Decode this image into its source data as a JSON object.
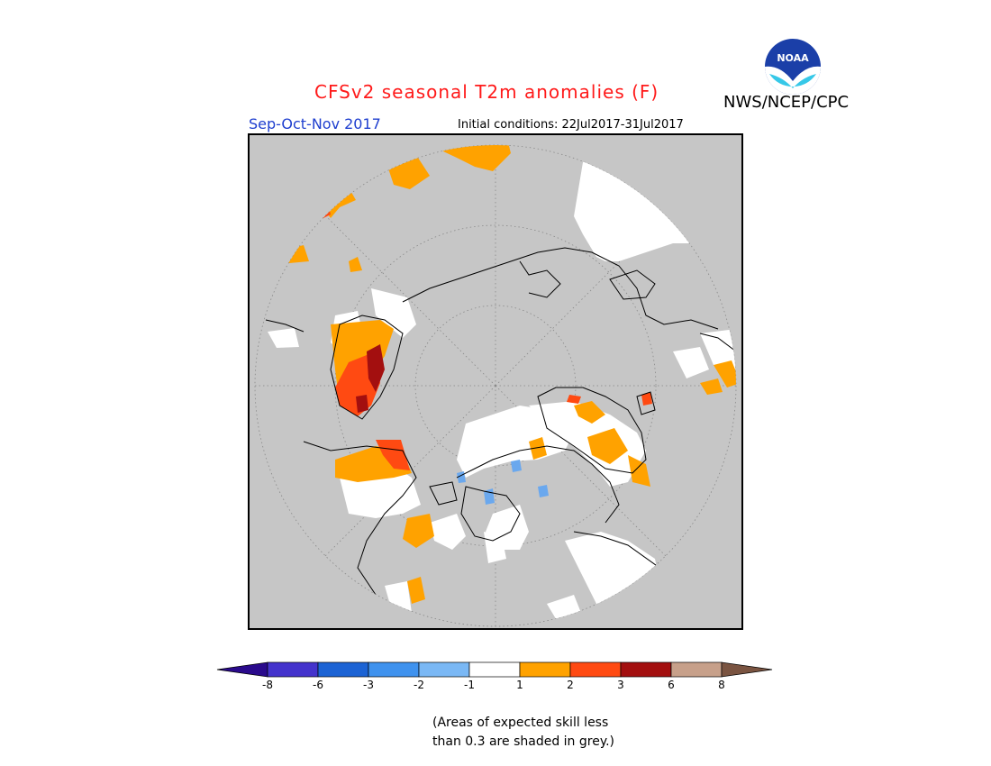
{
  "header": {
    "title": "CFSv2 seasonal T2m anomalies (F)",
    "agency": "NWS/NCEP/CPC",
    "logo_text": "NOAA",
    "season": "Sep-Oct-Nov 2017",
    "initial_conditions": "Initial conditions: 22Jul2017-31Jul2017"
  },
  "colorbar": {
    "colors": [
      "#2a0a8c",
      "#4433cc",
      "#1c63d4",
      "#3f92ee",
      "#7ab8f5",
      "#ffffff",
      "#ffa200",
      "#ff4a12",
      "#a30f0f",
      "#c7a08a",
      "#7a5441"
    ],
    "ticks": [
      "-8",
      "-6",
      "-3",
      "-2",
      "-1",
      "1",
      "2",
      "3",
      "6",
      "8"
    ]
  },
  "footnote": {
    "line1": "(Areas of expected skill less",
    "line2": "than 0.3 are shaded in grey.)"
  },
  "colors": {
    "grey_mask": "#c6c6c6",
    "white_neutral": "#ffffff",
    "orange": "#ffa200",
    "red": "#ff4a12",
    "darkred": "#a30f0f",
    "lightblue": "#6aa8ee"
  }
}
